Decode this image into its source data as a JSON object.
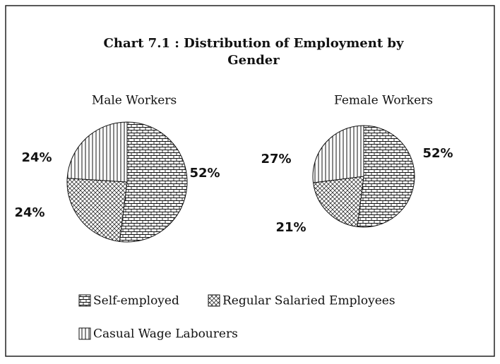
{
  "title": "Chart 7.1 : Distribution of Employment by Gender",
  "chart_data": [
    {
      "type": "pie",
      "title": "Male Workers",
      "categories": [
        "Self-employed",
        "Regular Salaried Employees",
        "Casual Wage Labourers"
      ],
      "values": [
        52,
        24,
        24
      ],
      "value_labels": [
        "52%",
        "24%",
        "24%"
      ]
    },
    {
      "type": "pie",
      "title": "Female Workers",
      "categories": [
        "Self-employed",
        "Regular Salaried Employees",
        "Casual Wage Labourers"
      ],
      "values": [
        52,
        21,
        27
      ],
      "value_labels": [
        "52%",
        "21%",
        "27%"
      ]
    }
  ]
}
